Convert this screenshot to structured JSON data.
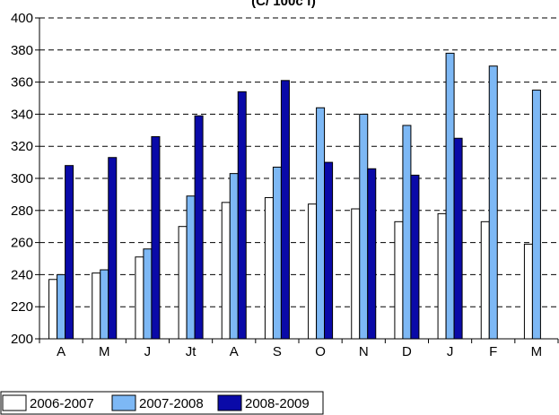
{
  "chart_data": {
    "type": "bar",
    "title": "(C/ 100c f)",
    "xlabel": "",
    "ylabel": "",
    "categories": [
      "A",
      "M",
      "J",
      "Jt",
      "A",
      "S",
      "O",
      "N",
      "D",
      "J",
      "F",
      "M"
    ],
    "ylim": [
      200,
      400
    ],
    "yticks": [
      200,
      220,
      240,
      260,
      280,
      300,
      320,
      340,
      360,
      380,
      400
    ],
    "grid": "dashed-horizontal",
    "legend_position": "bottom-left",
    "series": [
      {
        "name": "2006-2007",
        "color": "#ffffff",
        "values": [
          237,
          241,
          251,
          270,
          285,
          288,
          284,
          281,
          273,
          278,
          273,
          259
        ]
      },
      {
        "name": "2007-2008",
        "color": "#7db8f5",
        "values": [
          240,
          243,
          256,
          289,
          303,
          307,
          344,
          340,
          333,
          378,
          370,
          355
        ]
      },
      {
        "name": "2008-2009",
        "color": "#0a0aa8",
        "values": [
          308,
          313,
          326,
          339,
          354,
          361,
          310,
          306,
          302,
          325,
          null,
          null
        ]
      }
    ]
  }
}
